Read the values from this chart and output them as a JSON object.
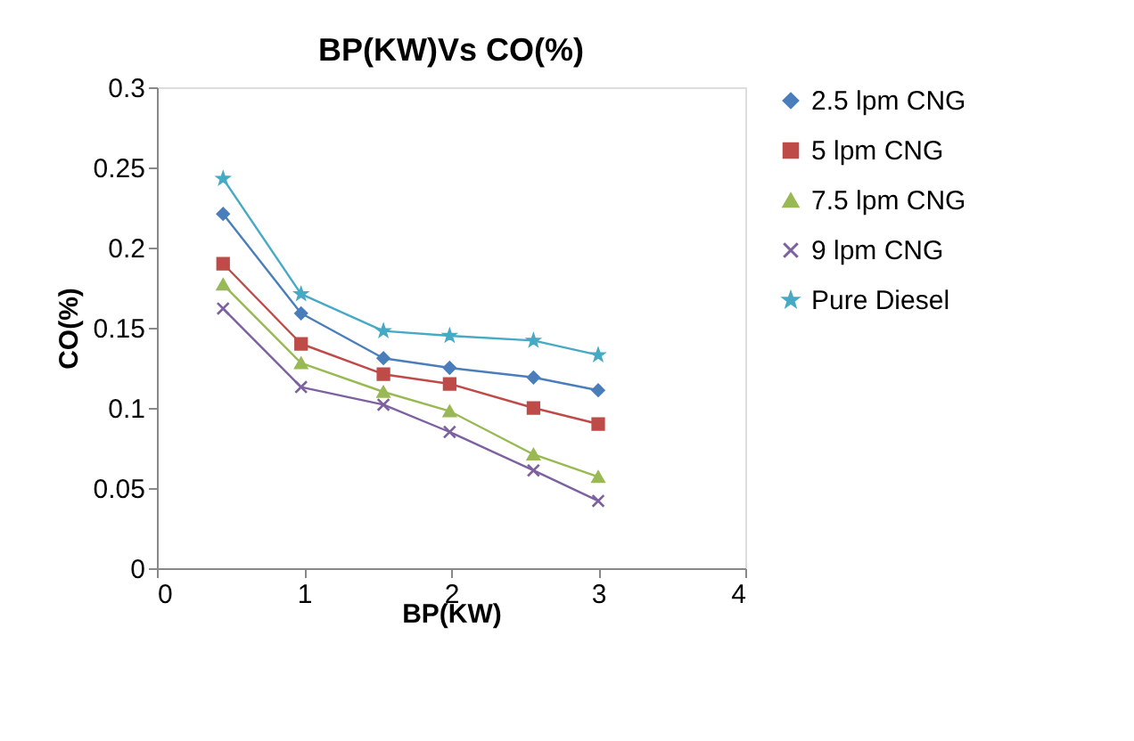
{
  "chart_data": {
    "type": "line",
    "title": "BP(KW)Vs CO(%)",
    "xlabel": "BP(KW)",
    "ylabel": "CO(%)",
    "x": [
      0.45,
      0.98,
      1.54,
      1.99,
      2.56,
      3.0
    ],
    "xlim": [
      0,
      4
    ],
    "xticks": [
      0,
      1,
      2,
      3,
      4
    ],
    "ylim": [
      0,
      0.3
    ],
    "yticks": [
      0,
      0.05,
      0.1,
      0.15,
      0.2,
      0.25,
      0.3
    ],
    "grid": false,
    "legend": "right",
    "series": [
      {
        "name": "2.5 lpm CNG",
        "color": "#4a7ebb",
        "marker": "diamond",
        "values": [
          0.221,
          0.159,
          0.131,
          0.125,
          0.119,
          0.111
        ]
      },
      {
        "name": "5 lpm CNG",
        "color": "#be4b48",
        "marker": "square",
        "values": [
          0.19,
          0.14,
          0.121,
          0.115,
          0.1,
          0.09
        ]
      },
      {
        "name": "7.5 lpm CNG",
        "color": "#98b954",
        "marker": "triangle",
        "values": [
          0.177,
          0.128,
          0.11,
          0.098,
          0.071,
          0.057
        ]
      },
      {
        "name": "9 lpm CNG",
        "color": "#7d60a0",
        "marker": "cross",
        "values": [
          0.162,
          0.113,
          0.102,
          0.085,
          0.061,
          0.042
        ]
      },
      {
        "name": "Pure Diesel",
        "color": "#46aac5",
        "marker": "star",
        "values": [
          0.243,
          0.171,
          0.148,
          0.145,
          0.142,
          0.133
        ]
      }
    ]
  }
}
